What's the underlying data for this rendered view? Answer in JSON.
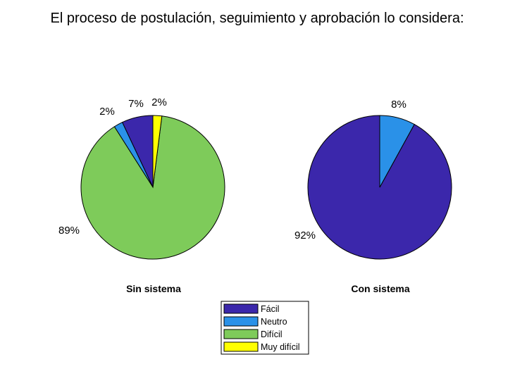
{
  "chart_data": {
    "type": "pie",
    "title": "El proceso de postulación, seguimiento y aprobación lo considera:",
    "legend": {
      "placement": "bottom-center",
      "entries": [
        "Fácil",
        "Neutro",
        "Difícil",
        "Muy difícil"
      ]
    },
    "colors": {
      "Fácil": "#3b27ab",
      "Neutro": "#2a91e8",
      "Difícil": "#7ecb5a",
      "Muy difícil": "#ffff00"
    },
    "charts": [
      {
        "subtitle": "Sin sistema",
        "slices": [
          {
            "category": "Fácil",
            "value": 7,
            "label": "7%"
          },
          {
            "category": "Neutro",
            "value": 2,
            "label": "2%"
          },
          {
            "category": "Difícil",
            "value": 89,
            "label": "89%"
          },
          {
            "category": "Muy difícil",
            "value": 2,
            "label": "2%"
          }
        ]
      },
      {
        "subtitle": "Con sistema",
        "slices": [
          {
            "category": "Fácil",
            "value": 92,
            "label": "92%"
          },
          {
            "category": "Neutro",
            "value": 8,
            "label": "8%"
          }
        ]
      }
    ]
  }
}
